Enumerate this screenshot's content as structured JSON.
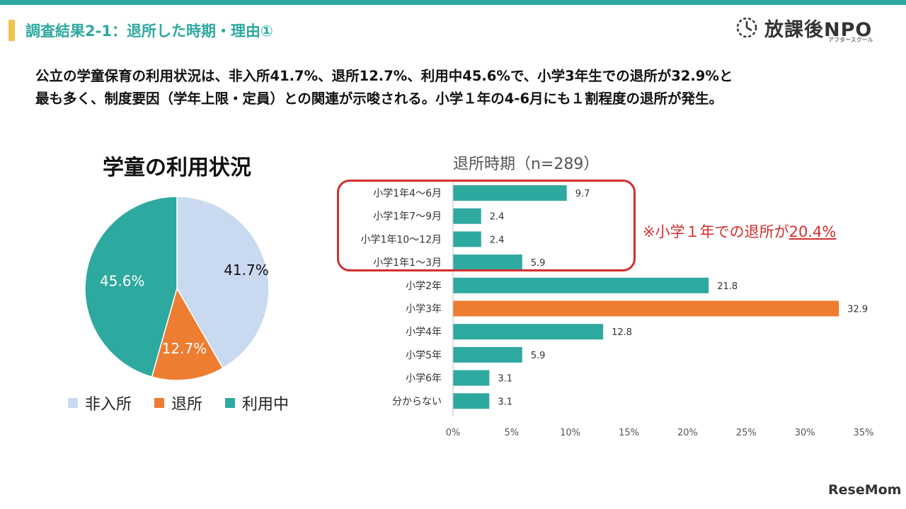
{
  "header": {
    "title": "調査結果2-1：退所した時期・理由①",
    "logo_text": "放課後NPO",
    "logo_sub": "アフタースクール"
  },
  "summary": {
    "line1": "公立の学童保育の利用状況は、非入所41.7%、退所12.7%、利用中45.6%で、小学3年生での退所が32.9%と",
    "line2": "最も多く、制度要因（学年上限・定員）との関連が示唆される。小学１年の4-6月にも１割程度の退所が発生。"
  },
  "note": {
    "prefix": "※小学１年での退所が",
    "value": "20.4%"
  },
  "footer": {
    "brand": "ReseMom"
  },
  "colors": {
    "teal": "#2ea9a0",
    "orange": "#ed7d31",
    "light_blue": "#c9daf0",
    "red": "#d42e2e"
  },
  "chart_data": [
    {
      "type": "pie",
      "title": "学童の利用状況",
      "slices": [
        {
          "label": "非入所",
          "value": 41.7,
          "display": "41.7%",
          "color": "#c9daf0"
        },
        {
          "label": "退所",
          "value": 12.7,
          "display": "12.7%",
          "color": "#ed7d31"
        },
        {
          "label": "利用中",
          "value": 45.6,
          "display": "45.6%",
          "color": "#2ea9a0"
        }
      ],
      "legend": "bottom"
    },
    {
      "type": "bar",
      "orientation": "horizontal",
      "title": "退所時期（n=289）",
      "categories": [
        "小学1年4～6月",
        "小学1年7～9月",
        "小学1年10～12月",
        "小学1年1～3月",
        "小学2年",
        "小学3年",
        "小学4年",
        "小学5年",
        "小学6年",
        "分からない"
      ],
      "values": [
        9.7,
        2.4,
        2.4,
        5.9,
        21.8,
        32.9,
        12.8,
        5.9,
        3.1,
        3.1
      ],
      "value_labels": [
        "9.7",
        "2.4",
        "2.4",
        "5.9",
        "21.8",
        "32.9",
        "12.8",
        "5.9",
        "3.1",
        "3.1"
      ],
      "highlight_index": 5,
      "bar_color": "#2ea9a0",
      "highlight_color": "#ed7d31",
      "xlim": [
        0,
        35
      ],
      "xticks": [
        "0%",
        "5%",
        "10%",
        "15%",
        "20%",
        "25%",
        "30%",
        "35%"
      ],
      "grid": false
    }
  ]
}
